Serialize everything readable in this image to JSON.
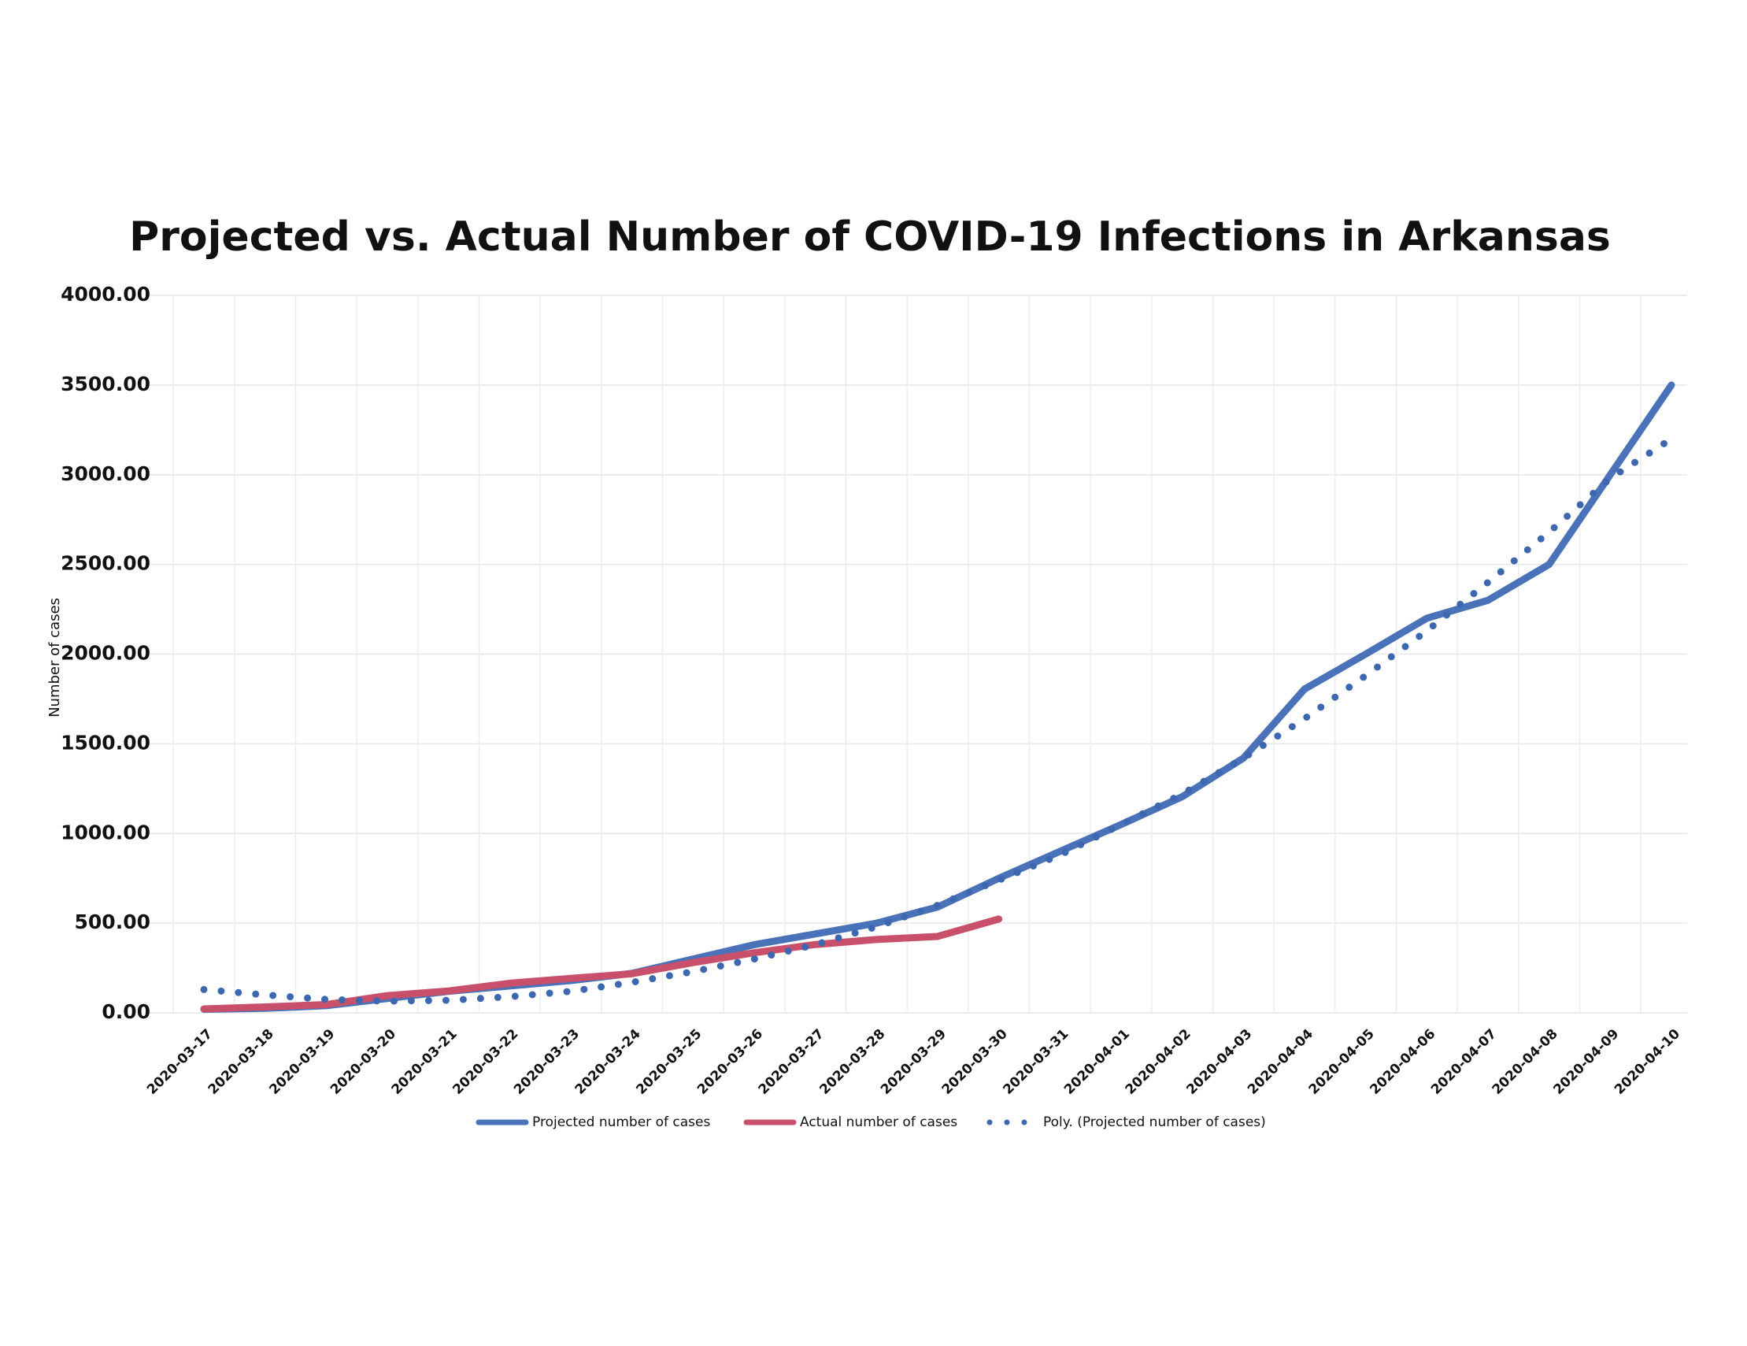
{
  "chart_data": {
    "type": "line",
    "title": "Projected vs. Actual Number of COVID-19 Infections in Arkansas",
    "y_label": "Number of cases",
    "categories": [
      "2020-03-17",
      "2020-03-18",
      "2020-03-19",
      "2020-03-20",
      "2020-03-21",
      "2020-03-22",
      "2020-03-23",
      "2020-03-24",
      "2020-03-25",
      "2020-03-26",
      "2020-03-27",
      "2020-03-28",
      "2020-03-29",
      "2020-03-30",
      "2020-03-31",
      "2020-04-01",
      "2020-04-02",
      "2020-04-03",
      "2020-04-04",
      "2020-04-05",
      "2020-04-06",
      "2020-04-07",
      "2020-04-08",
      "2020-04-09",
      "2020-04-10"
    ],
    "series": [
      {
        "name": "Projected number of cases",
        "color": "#4a72b8",
        "line_style": "solid",
        "values": [
          20,
          25,
          40,
          80,
          120,
          150,
          180,
          220,
          300,
          380,
          440,
          500,
          590,
          750,
          900,
          1050,
          1205,
          1420,
          1805,
          2000,
          2200,
          2300,
          2500,
          3000,
          3500
        ]
      },
      {
        "name": "Actual number of cases",
        "color": "#c8506a",
        "line_style": "solid",
        "values": [
          22,
          33,
          46,
          96,
          122,
          165,
          192,
          218,
          280,
          335,
          381,
          409,
          426,
          523,
          null,
          null,
          null,
          null,
          null,
          null,
          null,
          null,
          null,
          null,
          null
        ]
      },
      {
        "name": "Poly. (Projected number of cases)",
        "color": "#3d68b0",
        "line_style": "dotted",
        "values": [
          130,
          100,
          75,
          65,
          70,
          90,
          120,
          170,
          230,
          300,
          380,
          480,
          600,
          740,
          880,
          1050,
          1220,
          1420,
          1640,
          1880,
          2130,
          2400,
          2680,
          2980,
          3200
        ]
      }
    ],
    "ylim": [
      0,
      4000
    ],
    "yticks": [
      {
        "value": 0,
        "label": "0.00"
      },
      {
        "value": 500,
        "label": "500.00"
      },
      {
        "value": 1000,
        "label": "1000.00"
      },
      {
        "value": 1500,
        "label": "1500.00"
      },
      {
        "value": 2000,
        "label": "2000.00"
      },
      {
        "value": 2500,
        "label": "2500.00"
      },
      {
        "value": 3000,
        "label": "3000.00"
      },
      {
        "value": 3500,
        "label": "3500.00"
      },
      {
        "value": 4000,
        "label": "4000.00"
      }
    ],
    "grid": true,
    "legend": "bottom"
  }
}
